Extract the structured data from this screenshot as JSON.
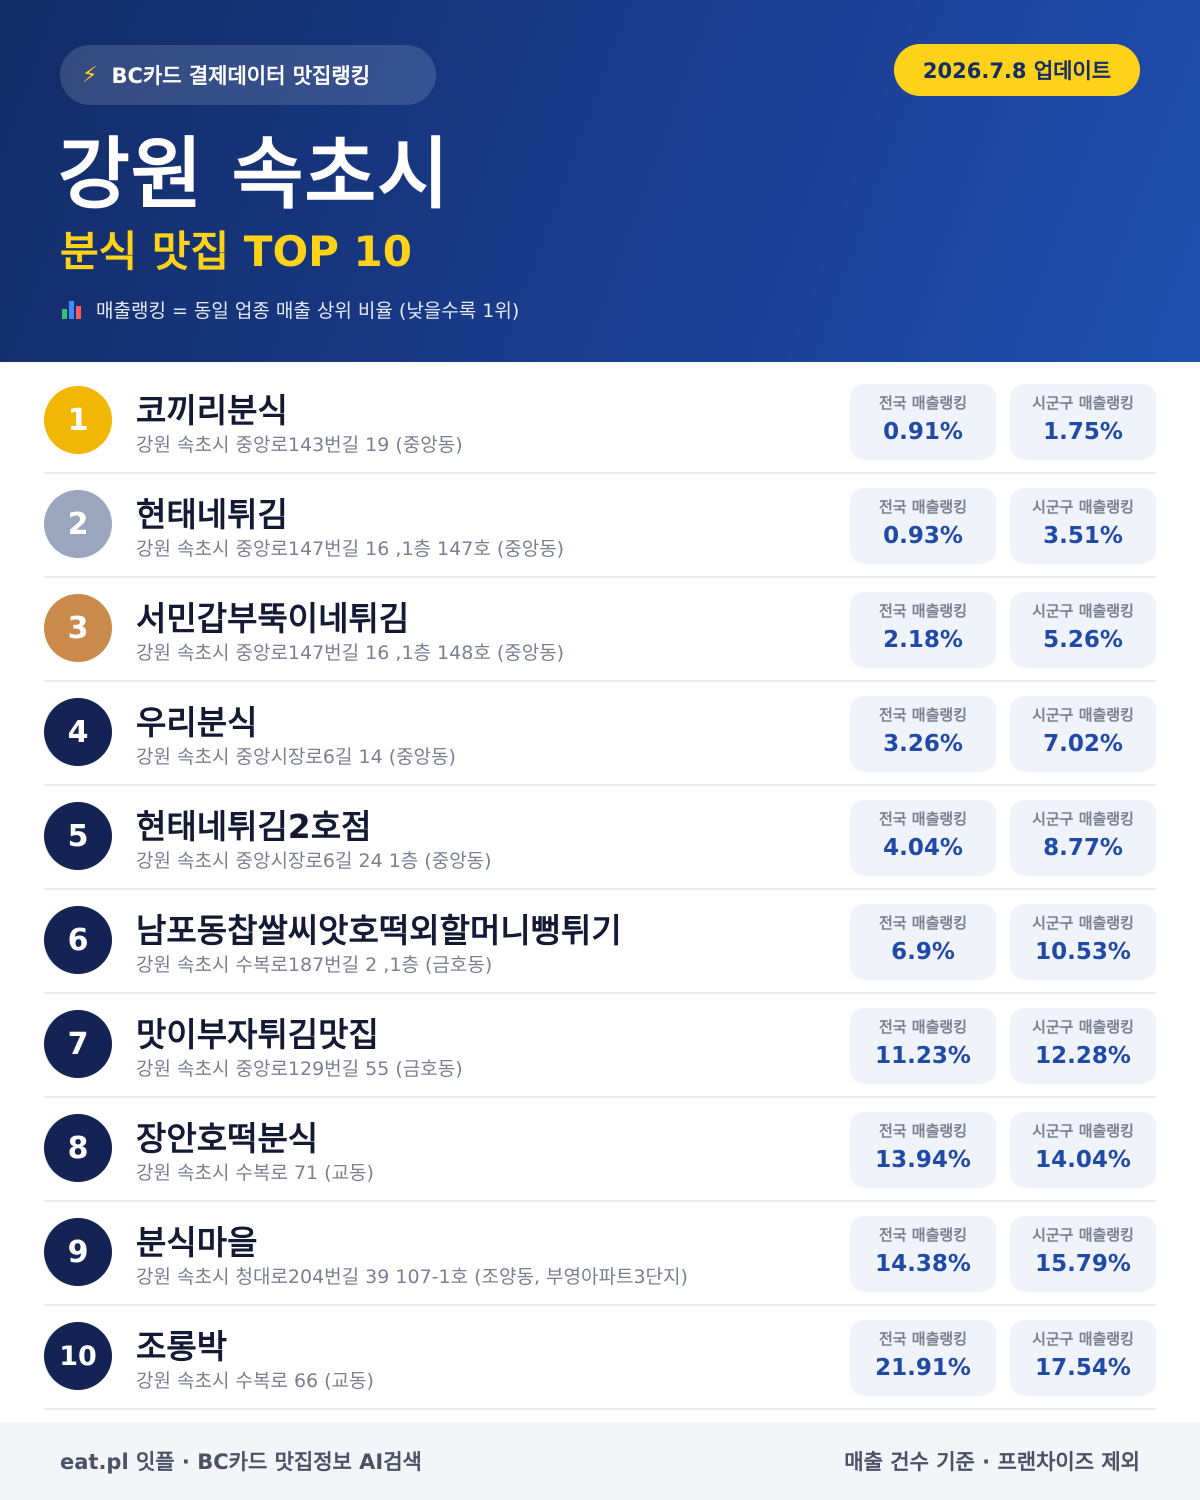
{
  "header": {
    "badge_text": "BC카드 결제데이터 맛집랭킹",
    "update_text": "2026.7.8 업데이트",
    "region": "강원 속초시",
    "subtitle": "분식 맛집 TOP 10",
    "note": "매출랭킹 = 동일 업종 매출 상위 비율 (낮을수록 1위)"
  },
  "stat_labels": {
    "national": "전국 매출랭킹",
    "local": "시군구 매출랭킹"
  },
  "colors": {
    "gold": "#f2b705",
    "silver": "#9aa6bd",
    "bronze": "#c98a4b",
    "navy": "#142354",
    "accent": "#ffd21a",
    "value_blue": "#1f4aa6"
  },
  "icons": {
    "badge": "lightning-icon",
    "note": "bar-chart-icon"
  },
  "items": [
    {
      "rank": "1",
      "name": "코끼리분식",
      "address": "강원 속초시 중앙로143번길 19 (중앙동)",
      "national": "0.91%",
      "local": "1.75%"
    },
    {
      "rank": "2",
      "name": "현태네튀김",
      "address": "강원 속초시 중앙로147번길 16 ,1층 147호 (중앙동)",
      "national": "0.93%",
      "local": "3.51%"
    },
    {
      "rank": "3",
      "name": "서민갑부뚝이네튀김",
      "address": "강원 속초시 중앙로147번길 16 ,1층 148호 (중앙동)",
      "national": "2.18%",
      "local": "5.26%"
    },
    {
      "rank": "4",
      "name": "우리분식",
      "address": "강원 속초시 중앙시장로6길 14 (중앙동)",
      "national": "3.26%",
      "local": "7.02%"
    },
    {
      "rank": "5",
      "name": "현태네튀김2호점",
      "address": "강원 속초시 중앙시장로6길 24 1층 (중앙동)",
      "national": "4.04%",
      "local": "8.77%"
    },
    {
      "rank": "6",
      "name": "남포동찹쌀씨앗호떡외할머니뻥튀기",
      "address": "강원 속초시 수복로187번길 2 ,1층 (금호동)",
      "national": "6.9%",
      "local": "10.53%"
    },
    {
      "rank": "7",
      "name": "맛이부자튀김맛집",
      "address": "강원 속초시 중앙로129번길 55 (금호동)",
      "national": "11.23%",
      "local": "12.28%"
    },
    {
      "rank": "8",
      "name": "장안호떡분식",
      "address": "강원 속초시 수복로 71 (교동)",
      "national": "13.94%",
      "local": "14.04%"
    },
    {
      "rank": "9",
      "name": "분식마을",
      "address": "강원 속초시 청대로204번길 39 107-1호 (조양동, 부영아파트3단지)",
      "national": "14.38%",
      "local": "15.79%"
    },
    {
      "rank": "10",
      "name": "조롱박",
      "address": "강원 속초시 수복로 66 (교동)",
      "national": "21.91%",
      "local": "17.54%"
    }
  ],
  "footer": {
    "left": "eat.pl 잇플 · BC카드 맛집정보 AI검색",
    "right": "매출 건수 기준 · 프랜차이즈 제외"
  }
}
